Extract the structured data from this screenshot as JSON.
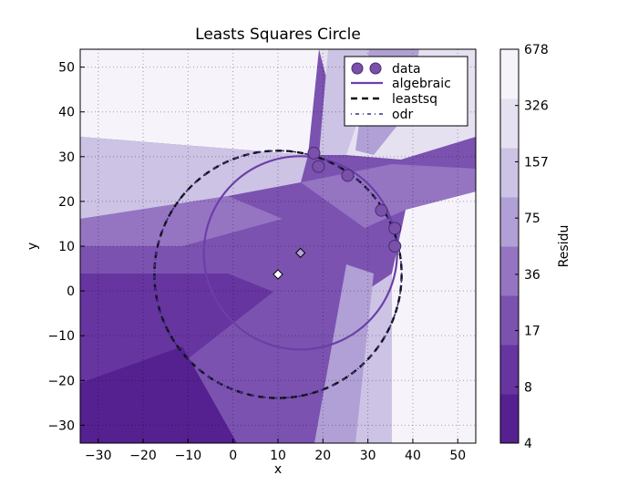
{
  "chart_data": {
    "type": "scatter",
    "title": "Leasts Squares Circle",
    "xlabel": "x",
    "ylabel": "y",
    "xlim": [
      -34,
      54
    ],
    "ylim": [
      -34,
      54
    ],
    "xticks": [
      -30,
      -20,
      -10,
      0,
      10,
      20,
      30,
      40,
      50
    ],
    "yticks": [
      -30,
      -20,
      -10,
      0,
      10,
      20,
      30,
      40,
      50
    ],
    "grid": true,
    "legend_position": "top-right",
    "legend": [
      "data",
      "algebraic",
      "leastsq",
      "odr"
    ],
    "series": [
      {
        "name": "data",
        "kind": "points",
        "color": "#7a50a8",
        "x": [
          18,
          19,
          25.5,
          33,
          36,
          36
        ],
        "y": [
          30.8,
          27.8,
          25.8,
          18,
          14,
          10
        ]
      },
      {
        "name": "algebraic",
        "kind": "circle",
        "color": "#6c3ea8",
        "center": [
          15,
          8.5
        ],
        "radius": 21.5
      },
      {
        "name": "leastsq",
        "kind": "circle",
        "color": "#111111",
        "center": [
          10,
          3.7
        ],
        "radius": 27.5
      },
      {
        "name": "odr",
        "kind": "circle",
        "color": "#3a2a8a",
        "center": [
          10,
          3.7
        ],
        "radius": 27.5
      }
    ],
    "centers": [
      {
        "x": 15,
        "y": 8.5,
        "color": "#b8a6d8"
      },
      {
        "x": 10,
        "y": 3.7,
        "color": "#ffffff"
      }
    ],
    "colorbar": {
      "label": "Residu",
      "ticks": [
        "4",
        "8",
        "17",
        "36",
        "75",
        "157",
        "326",
        "678"
      ],
      "colors": [
        "#55208f",
        "#6635a0",
        "#7b52b0",
        "#9575c2",
        "#b1a0d5",
        "#cdc3e5",
        "#e6e1f1",
        "#f6f4fa"
      ]
    }
  }
}
